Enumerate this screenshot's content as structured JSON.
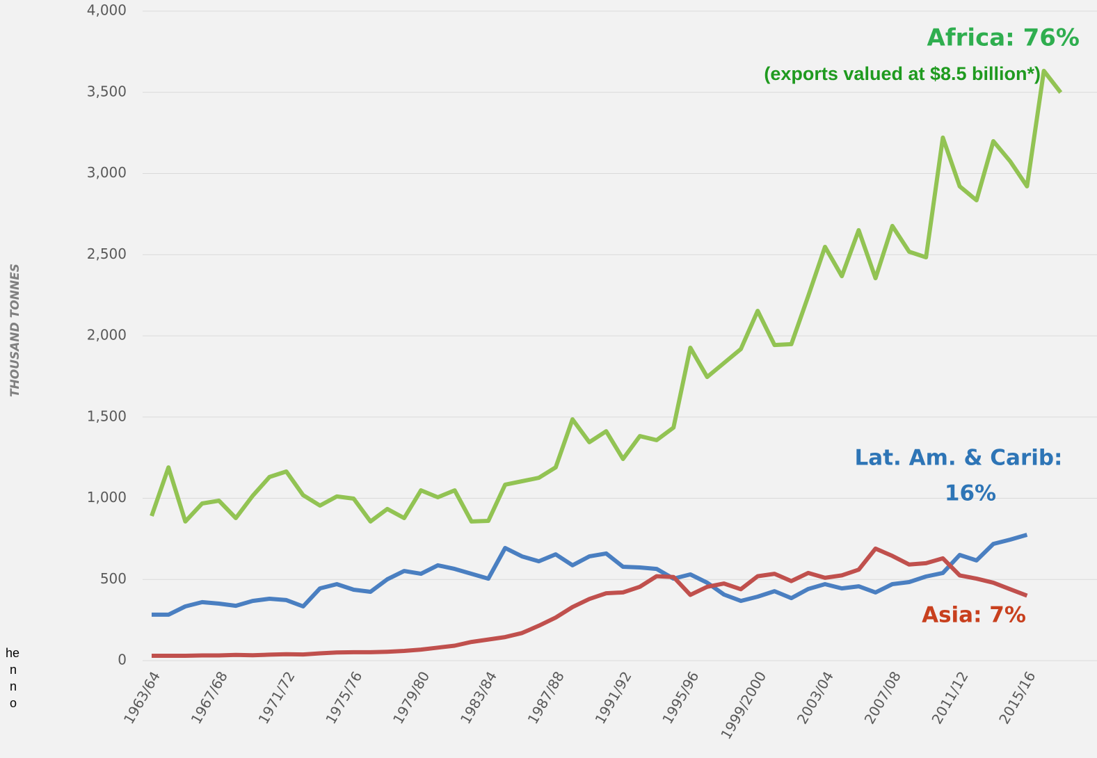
{
  "chart_data": {
    "type": "line",
    "y_label": "THOUSAND TONNES",
    "categories": [
      "1963/64",
      null,
      null,
      null,
      "1967/68",
      null,
      null,
      null,
      "1971/72",
      null,
      null,
      null,
      "1975/76",
      null,
      null,
      null,
      "1979/80",
      null,
      null,
      null,
      "1983/84",
      null,
      null,
      null,
      "1987/88",
      null,
      null,
      null,
      "1991/92",
      null,
      null,
      null,
      "1995/96",
      null,
      null,
      null,
      "1999/2000",
      null,
      null,
      null,
      "2003/04",
      null,
      null,
      null,
      "2007/08",
      null,
      null,
      null,
      "2011/12",
      null,
      null,
      null,
      "2015/16",
      null,
      null
    ],
    "series": [
      {
        "name": "Africa",
        "color": "#92c353",
        "values": [
          891,
          1190,
          857,
          968,
          985,
          878,
          1015,
          1131,
          1165,
          1019,
          955,
          1011,
          998,
          857,
          934,
          878,
          1049,
          1006,
          1049,
          857,
          861,
          1084,
          1105,
          1126,
          1190,
          1486,
          1345,
          1413,
          1242,
          1383,
          1358,
          1435,
          1927,
          1747,
          1833,
          1919,
          2154,
          1944,
          1949,
          2244,
          2548,
          2368,
          2651,
          2355,
          2677,
          2518,
          2484,
          3221,
          2921,
          2835,
          3199,
          3075,
          2921,
          3632,
          3499
        ]
      },
      {
        "name": "Lat. Am. & Carib",
        "color": "#4a7fc1",
        "values": [
          283,
          283,
          334,
          360,
          351,
          338,
          368,
          381,
          373,
          334,
          445,
          471,
          437,
          424,
          501,
          552,
          535,
          587,
          565,
          535,
          505,
          694,
          642,
          612,
          655,
          587,
          642,
          660,
          578,
          574,
          565,
          505,
          531,
          480,
          407,
          368,
          394,
          428,
          385,
          441,
          471,
          445,
          458,
          420,
          471,
          484,
          518,
          540,
          651,
          617,
          719,
          745,
          775,
          null,
          null
        ]
      },
      {
        "name": "Asia",
        "color": "#c0504d",
        "values": [
          30,
          30,
          30,
          32,
          32,
          35,
          33,
          37,
          40,
          38,
          45,
          50,
          52,
          52,
          55,
          60,
          68,
          80,
          92,
          115,
          130,
          145,
          170,
          215,
          265,
          330,
          380,
          415,
          420,
          455,
          520,
          515,
          405,
          455,
          475,
          440,
          520,
          535,
          490,
          540,
          510,
          525,
          560,
          690,
          645,
          592,
          600,
          630,
          525,
          505,
          480,
          440,
          400,
          null,
          null
        ]
      }
    ],
    "annotations": [
      {
        "text": "Africa: 76%",
        "color": "#2fae4f"
      },
      {
        "text": "(exports valued at $8.5 billion*)",
        "color": "#1f9a1f"
      },
      {
        "text": "Lat. Am. & Carib:",
        "color": "#2e75b6"
      },
      {
        "text": "16%",
        "color": "#2e75b6"
      },
      {
        "text": "Asia: 7%",
        "color": "#c8401e"
      }
    ],
    "clipped_text": [
      "he",
      "n",
      "n",
      "o"
    ],
    "ylim": [
      0,
      4000
    ],
    "yticks": [
      0,
      500,
      {
        "value": 1000,
        "label": "1,000"
      },
      {
        "value": 1500,
        "label": "1,500"
      },
      {
        "value": 2000,
        "label": "2,000"
      },
      {
        "value": 2500,
        "label": "2,500"
      },
      {
        "value": 3000,
        "label": "3,000"
      },
      {
        "value": 3500,
        "label": "3,500"
      },
      {
        "value": 4000,
        "label": "4,000"
      }
    ],
    "grid": true
  }
}
